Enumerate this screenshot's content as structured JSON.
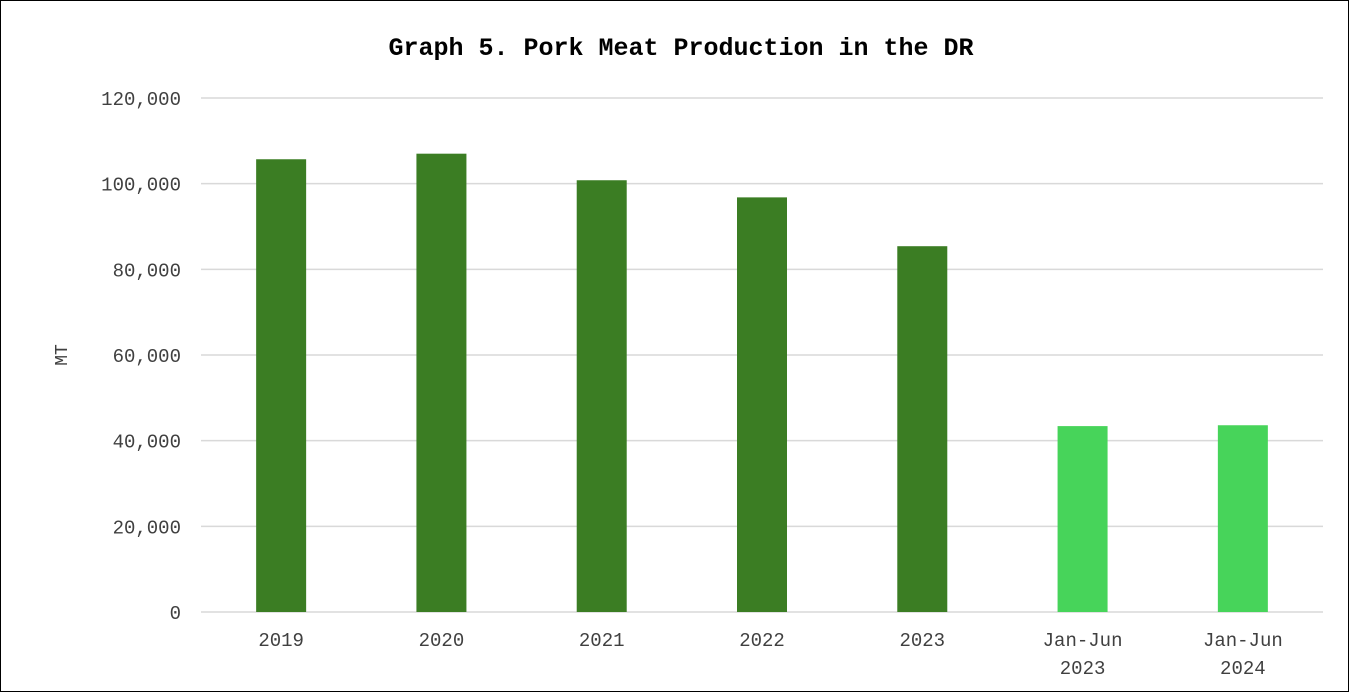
{
  "chart_data": {
    "type": "bar",
    "title": "Graph 5. Pork Meat Production in the DR",
    "ylabel": "MT",
    "xlabel": "",
    "categories": [
      [
        "2019"
      ],
      [
        "2020"
      ],
      [
        "2021"
      ],
      [
        "2022"
      ],
      [
        "2023"
      ],
      [
        "Jan-Jun",
        "2023"
      ],
      [
        "Jan-Jun",
        "2024"
      ]
    ],
    "values": [
      105700,
      107000,
      100800,
      96800,
      85400,
      43400,
      43600
    ],
    "bar_colors": [
      "#3b7d23",
      "#3b7d23",
      "#3b7d23",
      "#3b7d23",
      "#3b7d23",
      "#47d45a",
      "#47d45a"
    ],
    "ylim": [
      0,
      120000
    ],
    "yticks": [
      0,
      20000,
      40000,
      60000,
      80000,
      100000,
      120000
    ],
    "ytick_labels": [
      "0",
      "20,000",
      "40,000",
      "60,000",
      "80,000",
      "100,000",
      "120,000"
    ],
    "grid": true,
    "grid_color": "#d9d9d9",
    "legend": "none"
  }
}
